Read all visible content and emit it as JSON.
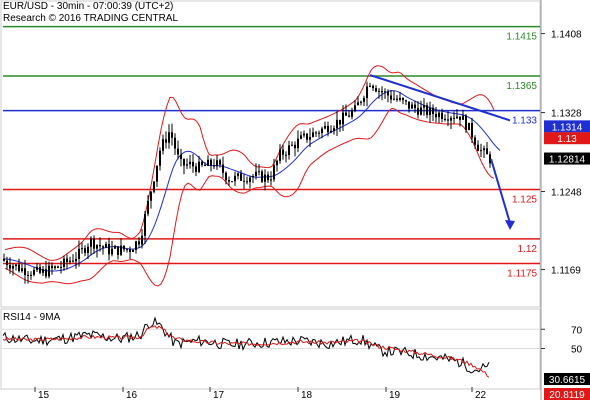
{
  "header": {
    "symbol_line": "EUR/USD - 30min - 07:00:39 (UTC+2)",
    "copyright_line": "Research © 2016 TRADING CENTRAL"
  },
  "rsi_panel": {
    "title": "RSI14 - 9MA"
  },
  "colors": {
    "resistance": "#2a8a2a",
    "pivot": "#1f2fd0",
    "support": "#e01818",
    "bollinger": "#e01818",
    "ma": "#1f2fd0",
    "trendline": "#1f2fd0",
    "candle": "#000000",
    "rsi": "#000000",
    "rsi_ma": "#d01818"
  },
  "chart_data": [
    {
      "type": "candlestick",
      "title": "EUR/USD - 30min",
      "ylim": [
        1.1133,
        1.144
      ],
      "price_axis_ticks": [
        "1.1408",
        "1.1328",
        "1.1248",
        "1.1169"
      ],
      "x_ticks": [
        "15",
        "16",
        "17",
        "18",
        "19",
        "22"
      ],
      "current_price": "1.12814",
      "levels": [
        {
          "label": "1.1415",
          "value": 1.1415,
          "kind": "resistance"
        },
        {
          "label": "1.1365",
          "value": 1.1365,
          "kind": "resistance"
        },
        {
          "label": "1.133",
          "value": 1.133,
          "kind": "pivot"
        },
        {
          "label": "1.125",
          "value": 1.125,
          "kind": "support"
        },
        {
          "label": "1.12",
          "value": 1.12,
          "kind": "support"
        },
        {
          "label": "1.1175",
          "value": 1.1175,
          "kind": "support"
        }
      ],
      "axis_badges": [
        {
          "label": "1.1314",
          "value": 1.1314,
          "color": "#1f2fd0"
        },
        {
          "label": "1.13",
          "value": 1.1302,
          "color": "#e01818"
        }
      ],
      "price_path": [
        [
          0,
          1.118
        ],
        [
          20,
          1.117
        ],
        [
          40,
          1.1165
        ],
        [
          60,
          1.1172
        ],
        [
          80,
          1.1185
        ],
        [
          90,
          1.1198
        ],
        [
          110,
          1.1188
        ],
        [
          130,
          1.119
        ],
        [
          140,
          1.12
        ],
        [
          150,
          1.1245
        ],
        [
          160,
          1.129
        ],
        [
          170,
          1.131
        ],
        [
          180,
          1.1275
        ],
        [
          190,
          1.1275
        ],
        [
          200,
          1.1272
        ],
        [
          215,
          1.1277
        ],
        [
          230,
          1.126
        ],
        [
          250,
          1.1264
        ],
        [
          270,
          1.1262
        ],
        [
          280,
          1.1285
        ],
        [
          300,
          1.13
        ],
        [
          320,
          1.131
        ],
        [
          340,
          1.132
        ],
        [
          355,
          1.133
        ],
        [
          370,
          1.136
        ],
        [
          380,
          1.135
        ],
        [
          395,
          1.1342
        ],
        [
          410,
          1.1334
        ],
        [
          430,
          1.1328
        ],
        [
          445,
          1.1326
        ],
        [
          460,
          1.1325
        ],
        [
          470,
          1.131
        ],
        [
          480,
          1.129
        ],
        [
          490,
          1.1281
        ]
      ],
      "forecast_arrow": {
        "from": [
          491,
          1.1281
        ],
        "to": [
          510,
          1.121
        ]
      },
      "trendline": {
        "from": [
          370,
          1.1366
        ],
        "to": [
          510,
          1.132
        ]
      }
    },
    {
      "type": "line",
      "title": "RSI14 - 9MA",
      "ylim": [
        10,
        90
      ],
      "y_ticks": [
        70,
        50
      ],
      "values_shown": [
        "30.6615",
        "20.8119"
      ],
      "series": [
        {
          "name": "RSI14",
          "values_path": [
            [
              0,
              62
            ],
            [
              30,
              58
            ],
            [
              60,
              60
            ],
            [
              90,
              64
            ],
            [
              120,
              60
            ],
            [
              140,
              64
            ],
            [
              150,
              78
            ],
            [
              160,
              74
            ],
            [
              175,
              55
            ],
            [
              200,
              58
            ],
            [
              230,
              54
            ],
            [
              260,
              56
            ],
            [
              300,
              58
            ],
            [
              330,
              55
            ],
            [
              360,
              60
            ],
            [
              380,
              48
            ],
            [
              410,
              45
            ],
            [
              440,
              40
            ],
            [
              460,
              36
            ],
            [
              475,
              28
            ],
            [
              490,
              30.66
            ]
          ]
        },
        {
          "name": "9MA",
          "values_path": [
            [
              0,
              60
            ],
            [
              30,
              59
            ],
            [
              60,
              60
            ],
            [
              90,
              62
            ],
            [
              120,
              61
            ],
            [
              140,
              62
            ],
            [
              150,
              72
            ],
            [
              160,
              72
            ],
            [
              175,
              60
            ],
            [
              200,
              57
            ],
            [
              230,
              55
            ],
            [
              260,
              55
            ],
            [
              300,
              57
            ],
            [
              330,
              56
            ],
            [
              360,
              58
            ],
            [
              380,
              52
            ],
            [
              410,
              47
            ],
            [
              440,
              42
            ],
            [
              460,
              38
            ],
            [
              475,
              32
            ],
            [
              490,
              20.81
            ]
          ]
        }
      ]
    }
  ]
}
